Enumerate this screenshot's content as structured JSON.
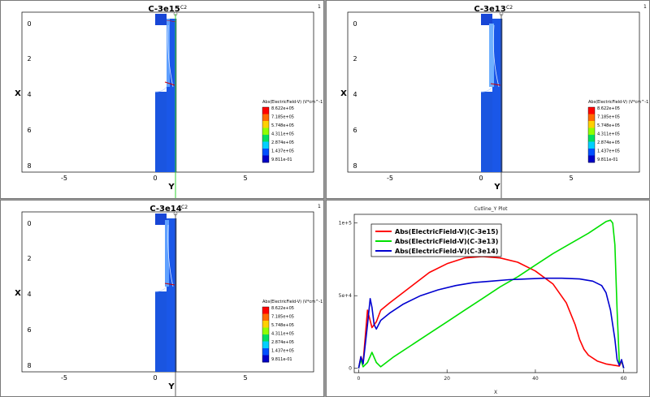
{
  "panels": [
    {
      "title": "C-3e15",
      "tag": "C2",
      "corner": "1",
      "xlabel": "Y",
      "ylabel": "X",
      "xticks": [
        "-5",
        "0",
        "5"
      ],
      "yticks": [
        "0",
        "2",
        "4",
        "6",
        "8"
      ]
    },
    {
      "title": "C-3e13",
      "tag": "C2",
      "corner": "1",
      "xlabel": "Y",
      "ylabel": "X",
      "xticks": [
        "-5",
        "0",
        "5"
      ],
      "yticks": [
        "0",
        "2",
        "4",
        "6",
        "8"
      ]
    },
    {
      "title": "C-3e14",
      "tag": "C2",
      "corner": "1",
      "xlabel": "Y",
      "ylabel": "X",
      "xticks": [
        "-5",
        "0",
        "5"
      ],
      "yticks": [
        "0",
        "2",
        "4",
        "6",
        "8"
      ]
    }
  ],
  "colorbar": {
    "title": "Abs(ElectricField-V) (V*cm^-1)",
    "values": [
      "8.622e+05",
      "7.185e+05",
      "5.748e+05",
      "4.311e+05",
      "2.874e+05",
      "1.437e+05",
      "9.811e-01"
    ],
    "colors": [
      "#ff0000",
      "#ff6a00",
      "#ffd000",
      "#90ff00",
      "#00e060",
      "#00d0ff",
      "#0050ff",
      "#0000c8"
    ]
  },
  "cutline": {
    "title": "Cutline_Y Plot",
    "xlabel": "X",
    "xticks": [
      "0",
      "20",
      "40",
      "60"
    ],
    "yticks": [
      "0",
      "5e+4",
      "1e+5"
    ]
  },
  "chart_data": {
    "type": "line",
    "title": "Cutline_Y Plot",
    "xlabel": "X",
    "ylabel": "",
    "xlim": [
      -1,
      63
    ],
    "ylim": [
      -3000,
      106000
    ],
    "series": [
      {
        "name": "Abs(ElectricField-V)(C-3e15)",
        "color": "#ff0000",
        "x": [
          0,
          0.5,
          1,
          2,
          3,
          4,
          5,
          7,
          10,
          13,
          16,
          20,
          24,
          28,
          32,
          36,
          40,
          44,
          47,
          49,
          50,
          51,
          52,
          54,
          56,
          58,
          59,
          59.5,
          60
        ],
        "y": [
          0,
          8000,
          4000,
          40000,
          28000,
          32000,
          40000,
          45000,
          52000,
          59000,
          66000,
          72000,
          76000,
          77000,
          76000,
          73000,
          67000,
          58000,
          45000,
          30000,
          20000,
          13000,
          9000,
          5000,
          3000,
          2000,
          1500,
          5000,
          0
        ]
      },
      {
        "name": "Abs(ElectricField-V)(C-3e13)",
        "color": "#00e000",
        "x": [
          0,
          0.5,
          1,
          2,
          3,
          4,
          5,
          8,
          12,
          16,
          20,
          24,
          28,
          32,
          36,
          40,
          44,
          48,
          52,
          56,
          57,
          57.5,
          58,
          58.5,
          59,
          59.5,
          60
        ],
        "y": [
          0,
          6000,
          1000,
          4000,
          11000,
          4000,
          1000,
          8000,
          16000,
          24000,
          32000,
          40000,
          48000,
          56000,
          63000,
          71000,
          79000,
          86000,
          93000,
          101000,
          102000,
          100000,
          85000,
          40000,
          3000,
          5000,
          0
        ]
      },
      {
        "name": "Abs(ElectricField-V)(C-3e14)",
        "color": "#0000d0",
        "x": [
          0,
          0.5,
          1,
          2,
          2.6,
          3,
          3.5,
          4,
          5,
          7,
          10,
          14,
          18,
          22,
          26,
          30,
          34,
          38,
          42,
          46,
          50,
          53,
          55,
          56,
          57,
          58,
          58.5,
          59,
          59.5,
          60
        ],
        "y": [
          0,
          8000,
          3000,
          30000,
          48000,
          42000,
          30000,
          27000,
          33000,
          38000,
          44000,
          50000,
          54000,
          57000,
          59000,
          60000,
          61000,
          61500,
          62000,
          62000,
          61500,
          60000,
          57000,
          52000,
          40000,
          20000,
          6000,
          2000,
          6000,
          0
        ]
      }
    ]
  }
}
